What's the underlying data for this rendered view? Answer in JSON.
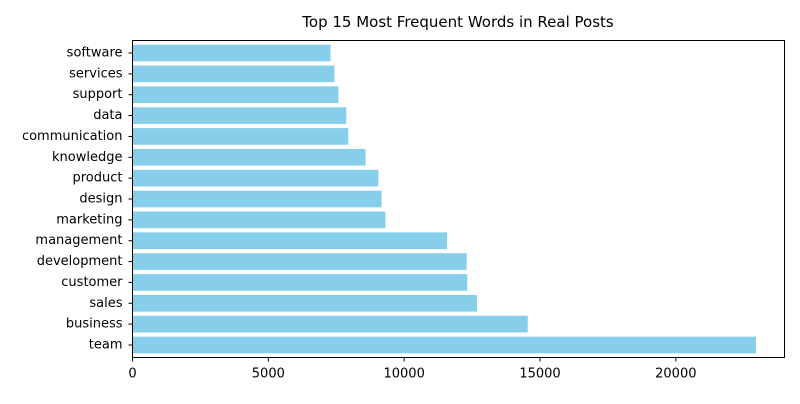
{
  "chart_data": {
    "type": "bar",
    "orientation": "horizontal",
    "title": "Top 15 Most Frequent Words in Real Posts",
    "xlabel": "",
    "ylabel": "",
    "categories": [
      "team",
      "business",
      "sales",
      "customer",
      "development",
      "management",
      "marketing",
      "design",
      "product",
      "knowledge",
      "communication",
      "data",
      "support",
      "services",
      "software"
    ],
    "values": [
      22950,
      14550,
      12680,
      12320,
      12300,
      11580,
      9310,
      9170,
      9050,
      8580,
      7940,
      7870,
      7580,
      7430,
      7290
    ],
    "xlim": [
      0,
      24000
    ],
    "xticks": [
      0,
      5000,
      10000,
      15000,
      20000
    ],
    "bar_color": "#87ceeb",
    "grid": false,
    "legend": "none"
  }
}
